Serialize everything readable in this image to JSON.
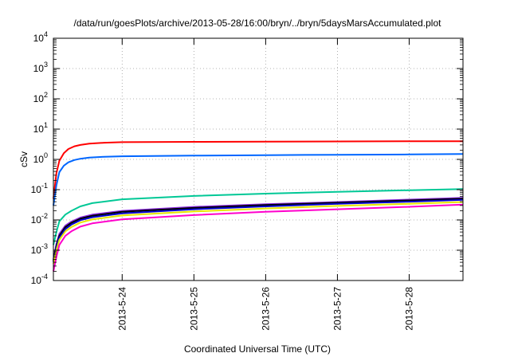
{
  "chart_data": {
    "type": "line",
    "title": "/data/run/goesPlots/archive/2013-05-28/16:00/bryn/../bryn/5daysMarsAccumulated.plot",
    "xlabel": "Coordinated Universal Time (UTC)",
    "ylabel": "cSv",
    "y_scale": "log",
    "ylim": [
      0.0001,
      10000
    ],
    "xlim": [
      "2013-05-23 01:00",
      "2013-05-28 18:00"
    ],
    "grid": true,
    "legend": "none",
    "y_ticks": [
      {
        "base": "10",
        "exp": "-4"
      },
      {
        "base": "10",
        "exp": "-3"
      },
      {
        "base": "10",
        "exp": "-2"
      },
      {
        "base": "10",
        "exp": "-1"
      },
      {
        "base": "10",
        "exp": "0"
      },
      {
        "base": "10",
        "exp": "1"
      },
      {
        "base": "10",
        "exp": "2"
      },
      {
        "base": "10",
        "exp": "3"
      },
      {
        "base": "10",
        "exp": "4"
      }
    ],
    "x_ticks": [
      "2013-5-24",
      "2013-5-25",
      "2013-5-26",
      "2013-5-27",
      "2013-5-28"
    ],
    "series": [
      {
        "color": "#ff0000",
        "x": [
          "2013-05-23 01:00",
          "2013-05-23 02:00",
          "2013-05-23 03:00",
          "2013-05-23 04:30",
          "2013-05-23 06:00",
          "2013-05-23 08:00",
          "2013-05-23 10:00",
          "2013-05-23 13:00",
          "2013-05-23 18:00",
          "2013-05-24 00:00",
          "2013-05-25 00:00",
          "2013-05-26 00:00",
          "2013-05-27 00:00",
          "2013-05-28 00:00",
          "2013-05-28 18:00"
        ],
        "values": [
          0.05,
          0.35,
          0.9,
          1.6,
          2.2,
          2.7,
          3.0,
          3.3,
          3.55,
          3.7,
          3.8,
          3.85,
          3.9,
          3.95,
          3.97
        ]
      },
      {
        "color": "#0066ff",
        "x": [
          "2013-05-23 01:00",
          "2013-05-23 02:00",
          "2013-05-23 03:00",
          "2013-05-23 04:30",
          "2013-05-23 06:00",
          "2013-05-23 08:00",
          "2013-05-23 10:00",
          "2013-05-23 13:00",
          "2013-05-23 18:00",
          "2013-05-24 00:00",
          "2013-05-25 00:00",
          "2013-05-26 00:00",
          "2013-05-27 00:00",
          "2013-05-28 00:00",
          "2013-05-28 18:00"
        ],
        "values": [
          0.03,
          0.14,
          0.38,
          0.62,
          0.8,
          0.95,
          1.05,
          1.15,
          1.22,
          1.27,
          1.33,
          1.38,
          1.42,
          1.46,
          1.5
        ]
      },
      {
        "color": "#00c896",
        "x": [
          "2013-05-23 01:00",
          "2013-05-23 02:00",
          "2013-05-23 03:00",
          "2013-05-23 05:00",
          "2013-05-23 07:00",
          "2013-05-23 10:00",
          "2013-05-23 14:00",
          "2013-05-24 00:00",
          "2013-05-25 00:00",
          "2013-05-26 00:00",
          "2013-05-27 00:00",
          "2013-05-28 00:00",
          "2013-05-28 18:00"
        ],
        "values": [
          0.0015,
          0.004,
          0.009,
          0.015,
          0.02,
          0.028,
          0.036,
          0.048,
          0.062,
          0.074,
          0.085,
          0.096,
          0.105
        ]
      },
      {
        "color": "#8a2be2",
        "x": [
          "2013-05-23 01:00",
          "2013-05-23 02:00",
          "2013-05-23 03:00",
          "2013-05-23 05:00",
          "2013-05-23 07:00",
          "2013-05-23 10:00",
          "2013-05-23 14:00",
          "2013-05-24 00:00",
          "2013-05-25 00:00",
          "2013-05-26 00:00",
          "2013-05-27 00:00",
          "2013-05-28 00:00",
          "2013-05-28 18:00"
        ],
        "values": [
          0.0005,
          0.0016,
          0.0035,
          0.0065,
          0.0088,
          0.012,
          0.015,
          0.02,
          0.027,
          0.033,
          0.039,
          0.047,
          0.054
        ]
      },
      {
        "color": "#000000",
        "x": [
          "2013-05-23 01:00",
          "2013-05-23 02:00",
          "2013-05-23 03:00",
          "2013-05-23 05:00",
          "2013-05-23 07:00",
          "2013-05-23 10:00",
          "2013-05-23 14:00",
          "2013-05-24 00:00",
          "2013-05-25 00:00",
          "2013-05-26 00:00",
          "2013-05-27 00:00",
          "2013-05-28 00:00",
          "2013-05-28 18:00"
        ],
        "values": [
          0.00045,
          0.0014,
          0.003,
          0.0058,
          0.008,
          0.011,
          0.0138,
          0.0185,
          0.025,
          0.031,
          0.037,
          0.044,
          0.05
        ]
      },
      {
        "color": "#0000cc",
        "x": [
          "2013-05-23 01:00",
          "2013-05-23 02:00",
          "2013-05-23 03:00",
          "2013-05-23 05:00",
          "2013-05-23 07:00",
          "2013-05-23 10:00",
          "2013-05-23 14:00",
          "2013-05-24 00:00",
          "2013-05-25 00:00",
          "2013-05-26 00:00",
          "2013-05-27 00:00",
          "2013-05-28 00:00",
          "2013-05-28 18:00"
        ],
        "values": [
          0.0004,
          0.0012,
          0.0026,
          0.005,
          0.007,
          0.0098,
          0.0123,
          0.0165,
          0.0225,
          0.028,
          0.034,
          0.04,
          0.046
        ]
      },
      {
        "color": "#e6e600",
        "x": [
          "2013-05-23 01:00",
          "2013-05-23 02:00",
          "2013-05-23 03:00",
          "2013-05-23 05:00",
          "2013-05-23 07:00",
          "2013-05-23 10:00",
          "2013-05-23 14:00",
          "2013-05-24 00:00",
          "2013-05-25 00:00",
          "2013-05-26 00:00",
          "2013-05-27 00:00",
          "2013-05-28 00:00",
          "2013-05-28 18:00"
        ],
        "values": [
          0.00035,
          0.001,
          0.0022,
          0.0042,
          0.0058,
          0.0082,
          0.0104,
          0.014,
          0.019,
          0.024,
          0.029,
          0.034,
          0.039
        ]
      },
      {
        "color": "#ff00cc",
        "x": [
          "2013-05-23 01:00",
          "2013-05-23 02:00",
          "2013-05-23 03:00",
          "2013-05-23 05:00",
          "2013-05-23 07:00",
          "2013-05-23 10:00",
          "2013-05-23 14:00",
          "2013-05-24 00:00",
          "2013-05-25 00:00",
          "2013-05-26 00:00",
          "2013-05-27 00:00",
          "2013-05-28 00:00",
          "2013-05-28 18:00"
        ],
        "values": [
          0.0002,
          0.0006,
          0.0015,
          0.003,
          0.0042,
          0.006,
          0.0077,
          0.0105,
          0.0145,
          0.0185,
          0.0225,
          0.0272,
          0.032
        ]
      }
    ]
  }
}
